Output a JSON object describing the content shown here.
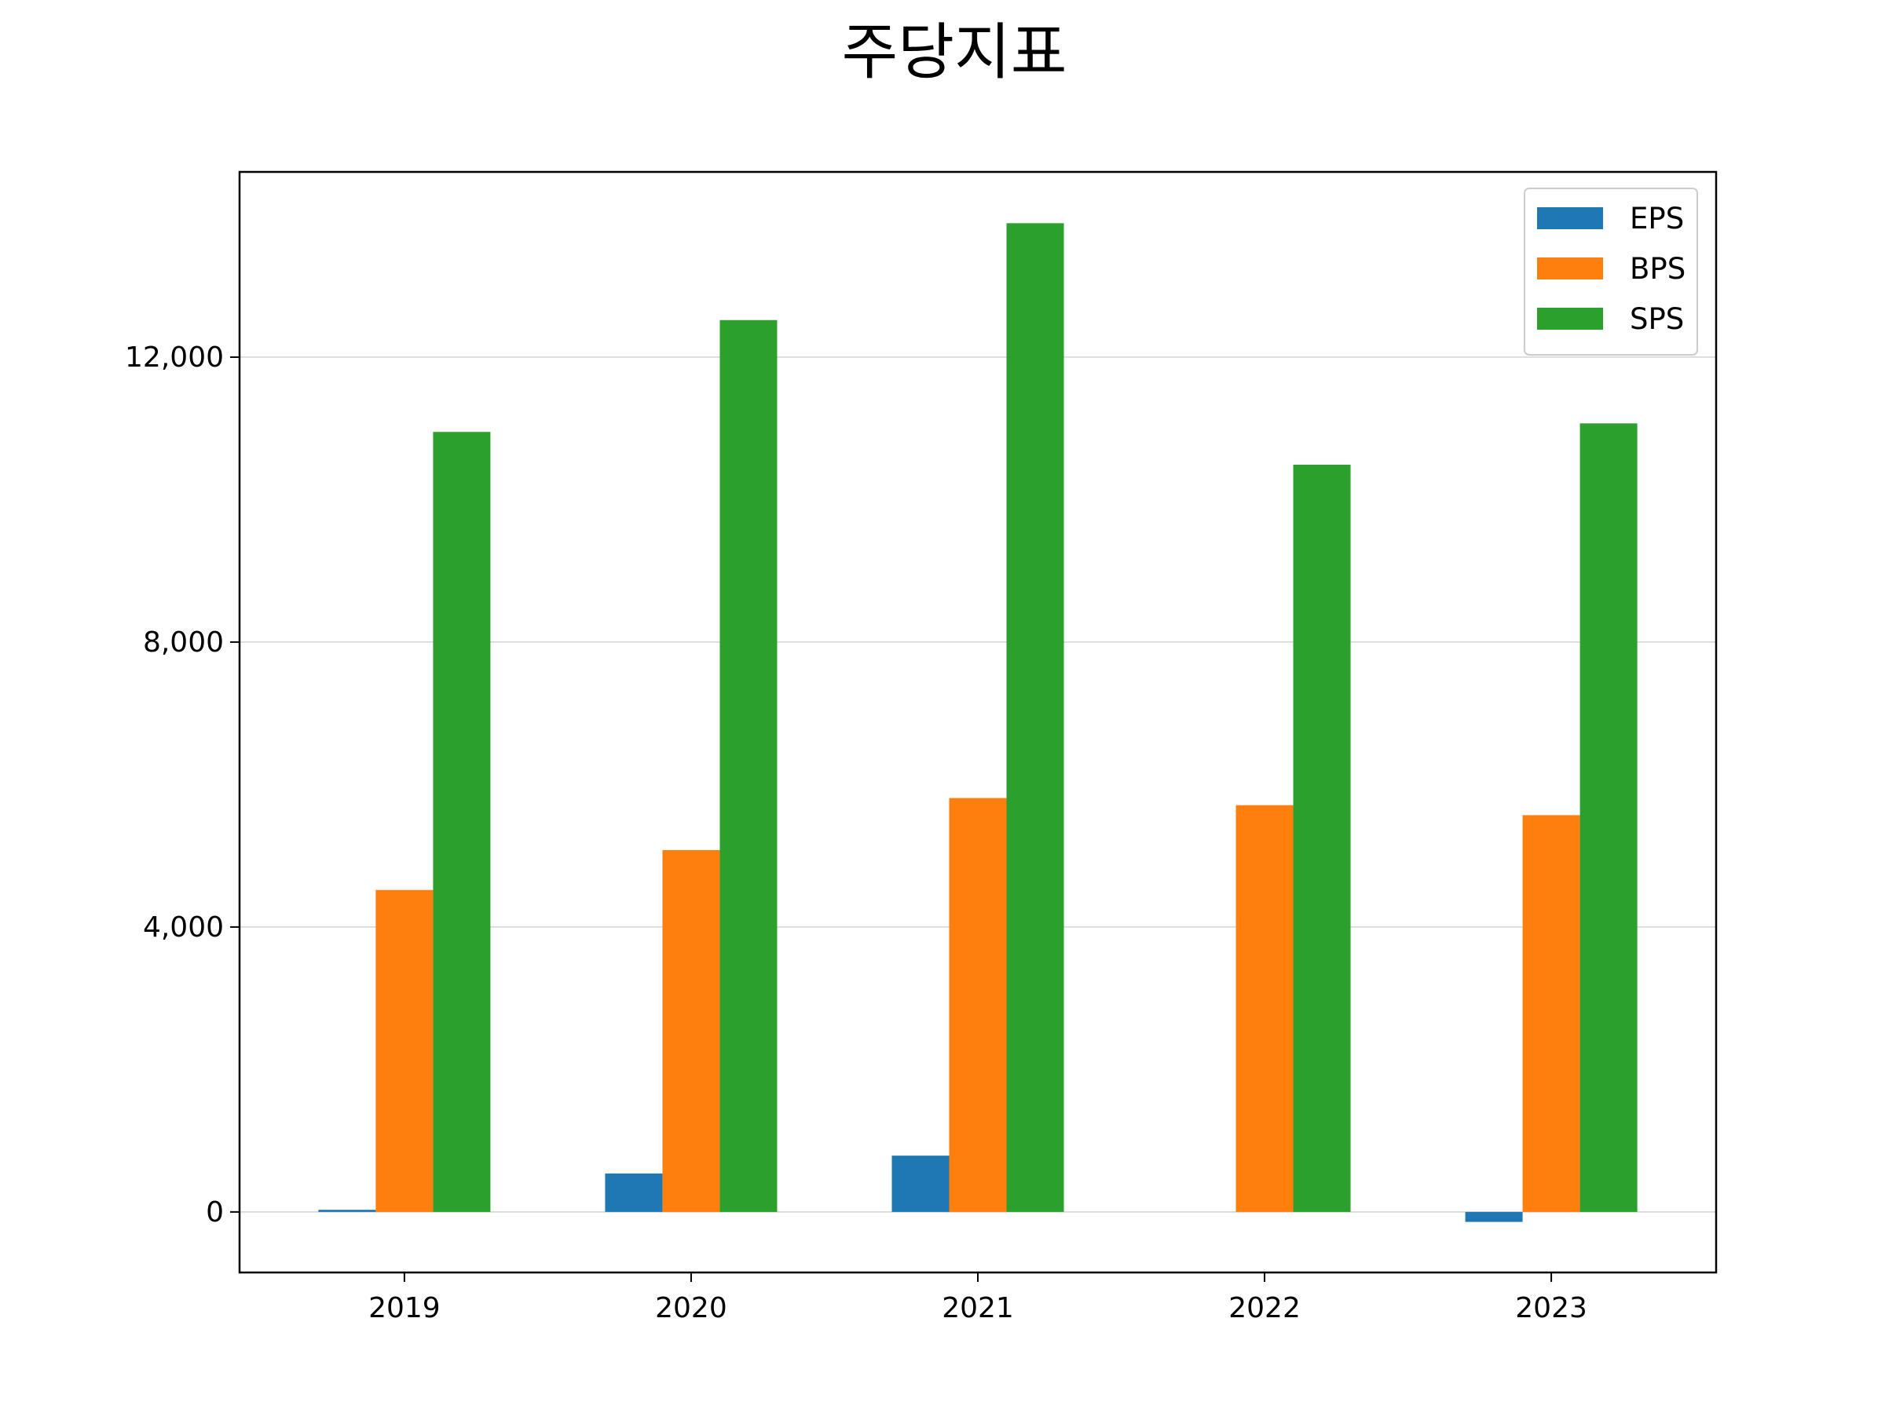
{
  "chart_data": {
    "type": "bar",
    "title": "주당지표",
    "xlabel": "",
    "ylabel": "",
    "categories": [
      "2019",
      "2020",
      "2021",
      "2022",
      "2023"
    ],
    "series": [
      {
        "name": "EPS",
        "color": "#1f77b4",
        "values": [
          30,
          540,
          790,
          0,
          -140
        ]
      },
      {
        "name": "BPS",
        "color": "#ff7f0e",
        "values": [
          4520,
          5080,
          5810,
          5710,
          5570
        ]
      },
      {
        "name": "SPS",
        "color": "#2ca02c",
        "values": [
          10950,
          12520,
          13880,
          10490,
          11070
        ]
      }
    ],
    "ylim": [
      -850,
      14600
    ],
    "yticks": [
      0,
      4000,
      8000,
      12000
    ],
    "ytick_labels": [
      "0",
      "4,000",
      "8,000",
      "12,000"
    ],
    "grid": "y",
    "legend": "top-right"
  }
}
